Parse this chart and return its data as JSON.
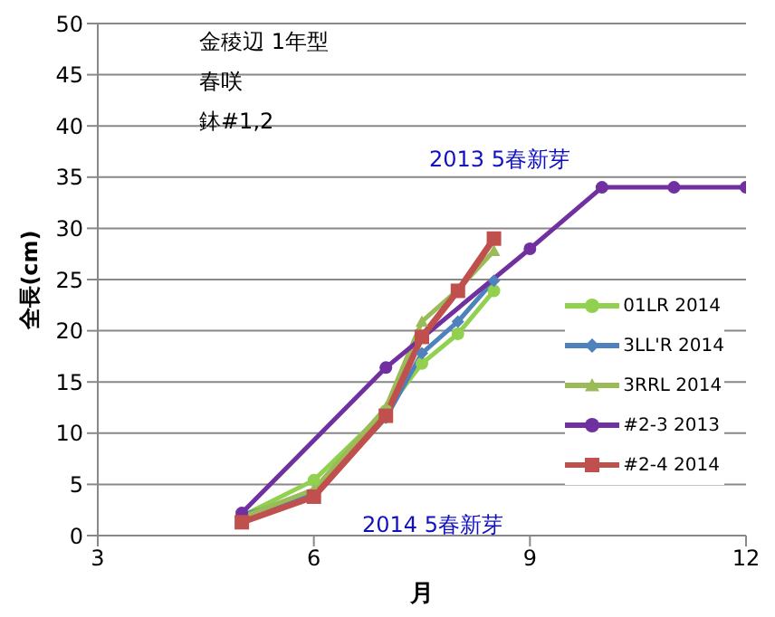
{
  "chart_data": {
    "type": "line",
    "xlabel": "月",
    "ylabel": "全長(cm)",
    "xlim": [
      3,
      12
    ],
    "xticks": [
      3,
      6,
      9,
      12
    ],
    "ylim": [
      0,
      50
    ],
    "yticks": [
      0,
      5,
      10,
      15,
      20,
      25,
      30,
      35,
      40,
      45,
      50
    ],
    "grid": "y",
    "legend": "right",
    "annotations": [
      "金稜辺  1年型",
      "春咲",
      "鉢#1,2",
      "2013 5春新芽",
      "2014 5春新芽"
    ],
    "series": [
      {
        "name": "01LR 2014",
        "color": "#92d050",
        "marker": "circle",
        "x": [
          5,
          6,
          7,
          7.5,
          8,
          8.5
        ],
        "values": [
          1.9,
          5.4,
          12.2,
          16.8,
          19.7,
          23.9
        ]
      },
      {
        "name": "3LL'R 2014",
        "color": "#4f81bd",
        "marker": "diamond",
        "x": [
          5,
          6,
          7,
          7.5,
          8,
          8.5
        ],
        "values": [
          2,
          4,
          11.5,
          17.8,
          20.9,
          24.9
        ]
      },
      {
        "name": "3RRL 2014",
        "color": "#9bbb59",
        "marker": "triangle",
        "x": [
          5,
          6,
          7,
          7.5,
          8,
          8.5
        ],
        "values": [
          1.8,
          4.5,
          12.5,
          20.9,
          24,
          27.8
        ]
      },
      {
        "name": "#2-3 2013",
        "color": "#7030a0",
        "marker": "circle",
        "x": [
          5,
          7,
          9,
          10,
          11,
          12
        ],
        "values": [
          2.2,
          16.4,
          28,
          34,
          34,
          34
        ]
      },
      {
        "name": "#2-4 2014",
        "color": "#c0504d",
        "marker": "square",
        "x": [
          5,
          6,
          7,
          7.5,
          8,
          8.5
        ],
        "values": [
          1.3,
          3.8,
          11.7,
          19.4,
          23.9,
          29
        ]
      }
    ]
  }
}
